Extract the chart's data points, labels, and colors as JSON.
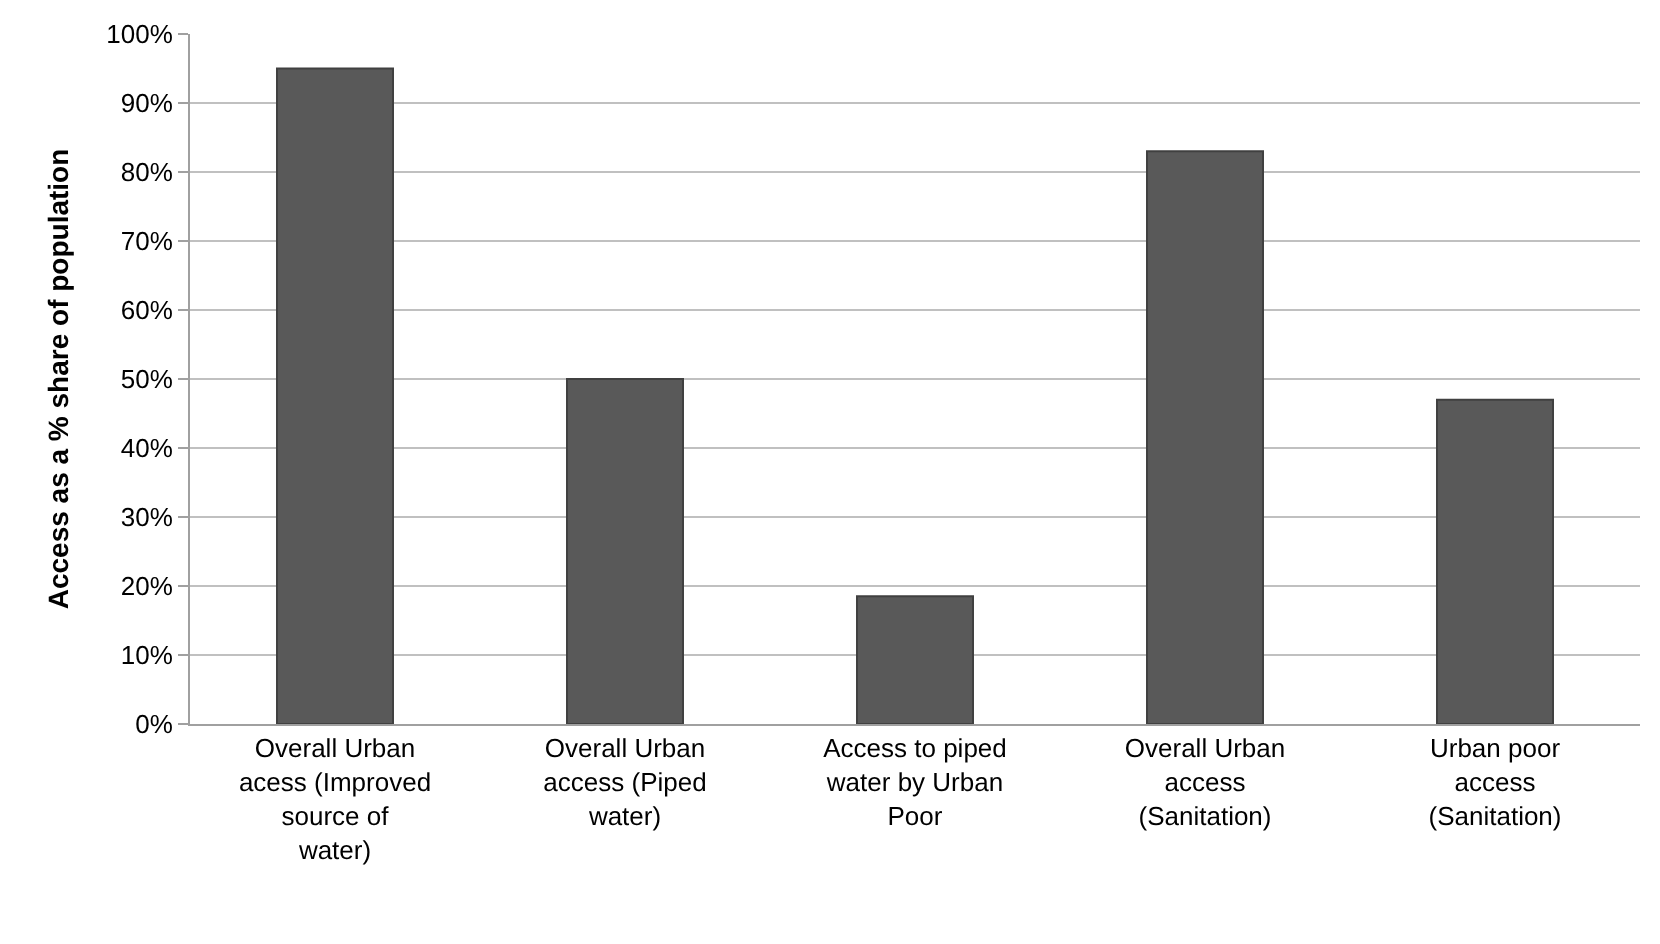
{
  "chart_data": {
    "type": "bar",
    "ylabel": "Access as a % share of population",
    "categories": [
      "Overall Urban acess (Improved source of water)",
      "Overall Urban access (Piped water)",
      "Access to piped water by Urban Poor",
      "Overall Urban access (Sanitation)",
      "Urban poor access (Sanitation)"
    ],
    "values": [
      95,
      50,
      18.5,
      83,
      47
    ],
    "color": "#595959",
    "ylim": [
      0,
      100
    ],
    "yticks": [
      {
        "value": 0,
        "label": "0%"
      },
      {
        "value": 10,
        "label": "10%"
      },
      {
        "value": 20,
        "label": "20%"
      },
      {
        "value": 30,
        "label": "30%"
      },
      {
        "value": 40,
        "label": "40%"
      },
      {
        "value": 50,
        "label": "50%"
      },
      {
        "value": 60,
        "label": "60%"
      },
      {
        "value": 70,
        "label": "70%"
      },
      {
        "value": 80,
        "label": "80%"
      },
      {
        "value": 90,
        "label": "90%"
      },
      {
        "value": 100,
        "label": "100%"
      }
    ],
    "grid": "y"
  }
}
